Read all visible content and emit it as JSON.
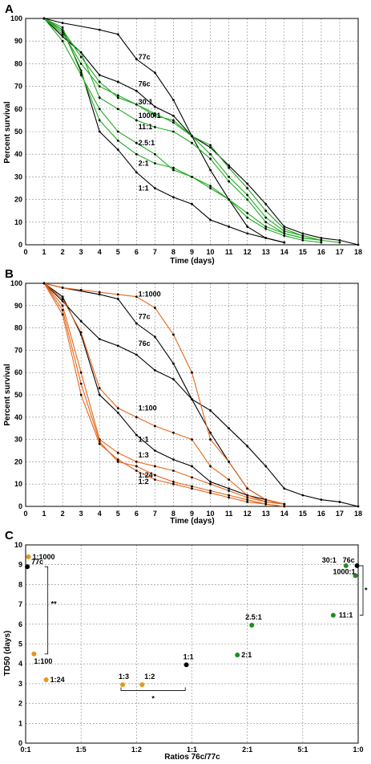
{
  "chart_data": [
    {
      "panel": "A",
      "type": "line",
      "xlabel": "Time (days)",
      "ylabel": "Percent survival",
      "xlim": [
        0,
        18
      ],
      "ylim": [
        0,
        100
      ],
      "xticks": [
        0,
        1,
        2,
        3,
        4,
        5,
        6,
        7,
        8,
        9,
        10,
        11,
        12,
        13,
        14,
        15,
        16,
        17,
        18
      ],
      "yticks": [
        0,
        10,
        20,
        30,
        40,
        50,
        60,
        70,
        80,
        90,
        100
      ],
      "grid": true,
      "series": [
        {
          "name": "77c",
          "color": "#000000",
          "x": [
            1,
            2,
            4,
            5,
            6,
            7,
            8,
            9,
            10,
            11,
            12,
            13,
            14,
            15,
            16,
            17,
            18
          ],
          "y": [
            100,
            98,
            95,
            93,
            82,
            76,
            64,
            48,
            43,
            35,
            27,
            18,
            8,
            5,
            3,
            2,
            0
          ]
        },
        {
          "name": "76c",
          "color": "#000000",
          "x": [
            1,
            2,
            3,
            4,
            5,
            6,
            7,
            8,
            9,
            10,
            11,
            12,
            13,
            14
          ],
          "y": [
            100,
            92,
            85,
            75,
            72,
            68,
            61,
            57,
            48,
            33,
            20,
            8,
            3,
            1
          ]
        },
        {
          "name": "1:1",
          "color": "#000000",
          "x": [
            1,
            2,
            3,
            4,
            5,
            6,
            7,
            8,
            9,
            10,
            11,
            12,
            13,
            14
          ],
          "y": [
            100,
            95,
            77,
            50,
            42,
            32,
            25,
            21,
            18,
            11,
            8,
            5,
            3,
            1
          ]
        },
        {
          "name": "30:1",
          "color": "#22aa22",
          "x": [
            1,
            2,
            3,
            4,
            5,
            6,
            7,
            8,
            9,
            10,
            11,
            12,
            13,
            14,
            15,
            16
          ],
          "y": [
            100,
            95,
            83,
            72,
            65,
            62,
            57,
            55,
            48,
            44,
            34,
            25,
            15,
            7,
            4,
            2
          ]
        },
        {
          "name": "1000:1",
          "color": "#22aa22",
          "x": [
            1,
            2,
            3,
            4,
            5,
            6,
            7,
            8,
            9,
            10,
            11,
            12,
            13,
            14,
            15,
            16
          ],
          "y": [
            100,
            94,
            80,
            70,
            66,
            62,
            58,
            54,
            48,
            40,
            30,
            22,
            12,
            6,
            4,
            2
          ]
        },
        {
          "name": "11:1",
          "color": "#22aa22",
          "x": [
            1,
            2,
            3,
            4,
            5,
            6,
            7,
            8,
            9,
            10,
            11,
            12,
            13,
            14,
            15,
            16
          ],
          "y": [
            100,
            93,
            85,
            65,
            60,
            55,
            52,
            50,
            45,
            38,
            28,
            20,
            10,
            5,
            3,
            2
          ]
        },
        {
          "name": "2.5:1",
          "color": "#22aa22",
          "x": [
            1,
            2,
            3,
            4,
            5,
            6,
            7,
            8,
            9,
            10,
            11,
            12,
            13,
            14,
            15,
            16,
            17
          ],
          "y": [
            100,
            96,
            76,
            55,
            46,
            40,
            36,
            34,
            30,
            26,
            20,
            14,
            8,
            5,
            3,
            2,
            1
          ]
        },
        {
          "name": "2:1",
          "color": "#22aa22",
          "x": [
            1,
            2,
            3,
            4,
            5,
            6,
            7,
            8,
            9,
            10,
            11,
            12,
            13,
            14,
            15,
            16
          ],
          "y": [
            100,
            90,
            75,
            60,
            50,
            45,
            40,
            33,
            30,
            25,
            20,
            12,
            7,
            4,
            2,
            1
          ]
        }
      ],
      "annotations": [
        {
          "text": "77c",
          "x": 6.1,
          "y": 82
        },
        {
          "text": "76c",
          "x": 6.1,
          "y": 70
        },
        {
          "text": "30:1",
          "x": 6.1,
          "y": 62
        },
        {
          "text": "1000:1",
          "x": 6.1,
          "y": 56
        },
        {
          "text": "11:1",
          "x": 6.1,
          "y": 51
        },
        {
          "text": "2.5:1",
          "x": 6.1,
          "y": 44
        },
        {
          "text": "2:1",
          "x": 6.1,
          "y": 35
        },
        {
          "text": "1:1",
          "x": 6.1,
          "y": 24
        }
      ]
    },
    {
      "panel": "B",
      "type": "line",
      "xlabel": "Time (days)",
      "ylabel": "Percent survival",
      "xlim": [
        0,
        18
      ],
      "ylim": [
        0,
        100
      ],
      "xticks": [
        0,
        1,
        2,
        3,
        4,
        5,
        6,
        7,
        8,
        9,
        10,
        11,
        12,
        13,
        14,
        15,
        16,
        17,
        18
      ],
      "yticks": [
        0,
        10,
        20,
        30,
        40,
        50,
        60,
        70,
        80,
        90,
        100
      ],
      "grid": true,
      "series": [
        {
          "name": "77c",
          "color": "#000000",
          "x": [
            1,
            2,
            4,
            5,
            6,
            7,
            8,
            9,
            10,
            11,
            12,
            13,
            14,
            15,
            16,
            17,
            18
          ],
          "y": [
            100,
            98,
            95,
            93,
            82,
            76,
            64,
            48,
            43,
            35,
            27,
            18,
            8,
            5,
            3,
            2,
            0
          ]
        },
        {
          "name": "76c",
          "color": "#000000",
          "x": [
            1,
            2,
            3,
            4,
            5,
            6,
            7,
            8,
            9,
            10,
            11,
            12,
            13,
            14
          ],
          "y": [
            100,
            92,
            83,
            75,
            72,
            68,
            61,
            57,
            48,
            33,
            20,
            8,
            3,
            1
          ]
        },
        {
          "name": "1:1",
          "color": "#000000",
          "x": [
            1,
            2,
            3,
            4,
            5,
            6,
            7,
            8,
            9,
            10,
            11,
            12,
            13,
            14
          ],
          "y": [
            100,
            94,
            77,
            50,
            42,
            32,
            25,
            21,
            18,
            11,
            8,
            5,
            3,
            1
          ]
        },
        {
          "name": "1:1000",
          "color": "#e8661a",
          "x": [
            1,
            2,
            3,
            4,
            5,
            6,
            7,
            8,
            9,
            10,
            11,
            12,
            13,
            14
          ],
          "y": [
            100,
            98,
            97,
            96,
            95,
            94,
            89,
            77,
            60,
            30,
            20,
            8,
            3,
            1
          ]
        },
        {
          "name": "1:100",
          "color": "#e8661a",
          "x": [
            1,
            2,
            3,
            4,
            5,
            6,
            7,
            8,
            9,
            10,
            11,
            12,
            13,
            14
          ],
          "y": [
            100,
            93,
            78,
            53,
            44,
            40,
            36,
            33,
            30,
            18,
            12,
            5,
            2,
            1
          ]
        },
        {
          "name": "1:3",
          "color": "#e8661a",
          "x": [
            1,
            2,
            3,
            4,
            5,
            6,
            7,
            8,
            9,
            10,
            11,
            12,
            13,
            14
          ],
          "y": [
            100,
            90,
            60,
            30,
            24,
            20,
            18,
            16,
            13,
            10,
            7,
            4,
            2,
            1
          ]
        },
        {
          "name": "1:24",
          "color": "#e8661a",
          "x": [
            1,
            2,
            3,
            4,
            5,
            6,
            7,
            8,
            9,
            10,
            11,
            12,
            13,
            14
          ],
          "y": [
            100,
            88,
            55,
            29,
            20,
            18,
            14,
            11,
            9,
            7,
            5,
            3,
            1,
            0
          ]
        },
        {
          "name": "1:2",
          "color": "#e8661a",
          "x": [
            1,
            2,
            3,
            4,
            5,
            6,
            7,
            8,
            9,
            10,
            11,
            12,
            13,
            14
          ],
          "y": [
            100,
            86,
            50,
            28,
            21,
            16,
            12,
            10,
            8,
            6,
            4,
            2,
            1,
            0
          ]
        }
      ],
      "annotations": [
        {
          "text": "1:1000",
          "x": 6.1,
          "y": 94
        },
        {
          "text": "77c",
          "x": 6.1,
          "y": 84
        },
        {
          "text": "76c",
          "x": 6.1,
          "y": 72
        },
        {
          "text": "1:100",
          "x": 6.1,
          "y": 43
        },
        {
          "text": "1:1",
          "x": 6.1,
          "y": 29
        },
        {
          "text": "1:3",
          "x": 6.1,
          "y": 22
        },
        {
          "text": "1:24",
          "x": 6.1,
          "y": 13
        },
        {
          "text": "1:2",
          "x": 6.1,
          "y": 10
        }
      ]
    },
    {
      "panel": "C",
      "type": "scatter",
      "xlabel": "Ratios 76c/77c",
      "ylabel": "TD50 (days)",
      "ylim": [
        0,
        10
      ],
      "yticks": [
        0,
        1,
        2,
        3,
        4,
        5,
        6,
        7,
        8,
        9,
        10
      ],
      "categories": [
        "0:1",
        "1:5",
        "1:2",
        "1:1",
        "2:1",
        "5:1",
        "1:0"
      ],
      "xlim": [
        0,
        6
      ],
      "grid": true,
      "points": [
        {
          "label": "1:1000",
          "x": 0.05,
          "y": 9.4,
          "color": "#e8961a"
        },
        {
          "label": "77c",
          "x": 0.03,
          "y": 8.9,
          "color": "#000000"
        },
        {
          "label": "1:100",
          "x": 0.15,
          "y": 4.5,
          "color": "#e8961a"
        },
        {
          "label": "1:24",
          "x": 0.37,
          "y": 3.2,
          "color": "#e8961a"
        },
        {
          "label": "1:3",
          "x": 1.75,
          "y": 2.95,
          "color": "#e8961a"
        },
        {
          "label": "1:2",
          "x": 2.1,
          "y": 2.95,
          "color": "#e8961a"
        },
        {
          "label": "1:1",
          "x": 2.9,
          "y": 3.95,
          "color": "#000000"
        },
        {
          "label": "2:1",
          "x": 3.82,
          "y": 4.45,
          "color": "#228b22"
        },
        {
          "label": "2.5:1",
          "x": 4.08,
          "y": 5.95,
          "color": "#228b22"
        },
        {
          "label": "11:1",
          "x": 5.55,
          "y": 6.45,
          "color": "#228b22"
        },
        {
          "label": "1000:1",
          "x": 5.95,
          "y": 8.45,
          "color": "#228b22"
        },
        {
          "label": "30:1",
          "x": 5.78,
          "y": 8.95,
          "color": "#228b22"
        },
        {
          "label": "76c",
          "x": 5.98,
          "y": 8.95,
          "color": "#000000"
        }
      ],
      "significance": [
        "**",
        "*",
        "*"
      ]
    }
  ],
  "panel_labels": [
    "A",
    "B",
    "C"
  ]
}
